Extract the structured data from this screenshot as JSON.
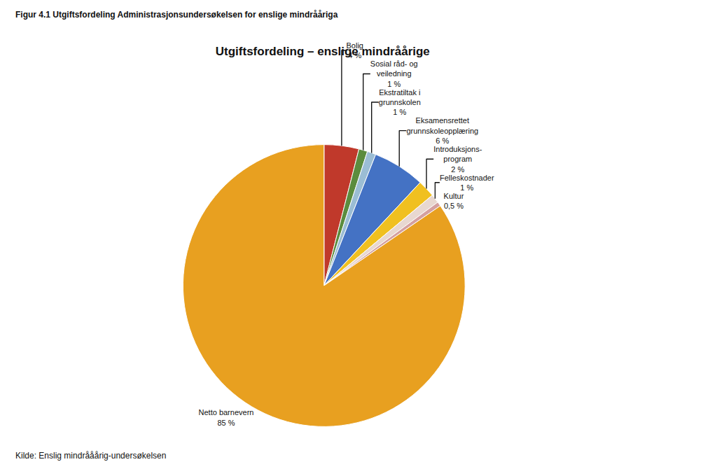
{
  "chart_data": {
    "type": "pie",
    "title": "Utgiftsfordeling – enslige mindråårige",
    "annotations": [
      "Figur 4.1 Utgiftsfordeling Administrasjonsundersøkelsen for enslige mindrååriga",
      "Kilde: Enslig mindrååårig-undersøkelsen"
    ],
    "categories": [
      "Bolig",
      "Sosial råd- og\nveiledning",
      "Ekstratiltak i\ngrunnskolen",
      "Eksamensrettet\ngrunnskoleopplæring",
      "Introduksjons-\nprogram",
      "Felleskostnader",
      "Kultur",
      "Netto barnevern"
    ],
    "values": [
      4,
      1,
      1,
      6,
      2,
      1,
      0.5,
      85
    ],
    "value_labels": [
      "4 %",
      "1 %",
      "1 %",
      "6 %",
      "2 %",
      "1 %",
      "0,5 %",
      "85 %"
    ],
    "colors": [
      "#C0392B",
      "#5B8C3E",
      "#9BBDD4",
      "#4472C4",
      "#F0C020",
      "#E8D8D0",
      "#D4A0A0",
      "#E8A020"
    ],
    "data_labels": true
  }
}
